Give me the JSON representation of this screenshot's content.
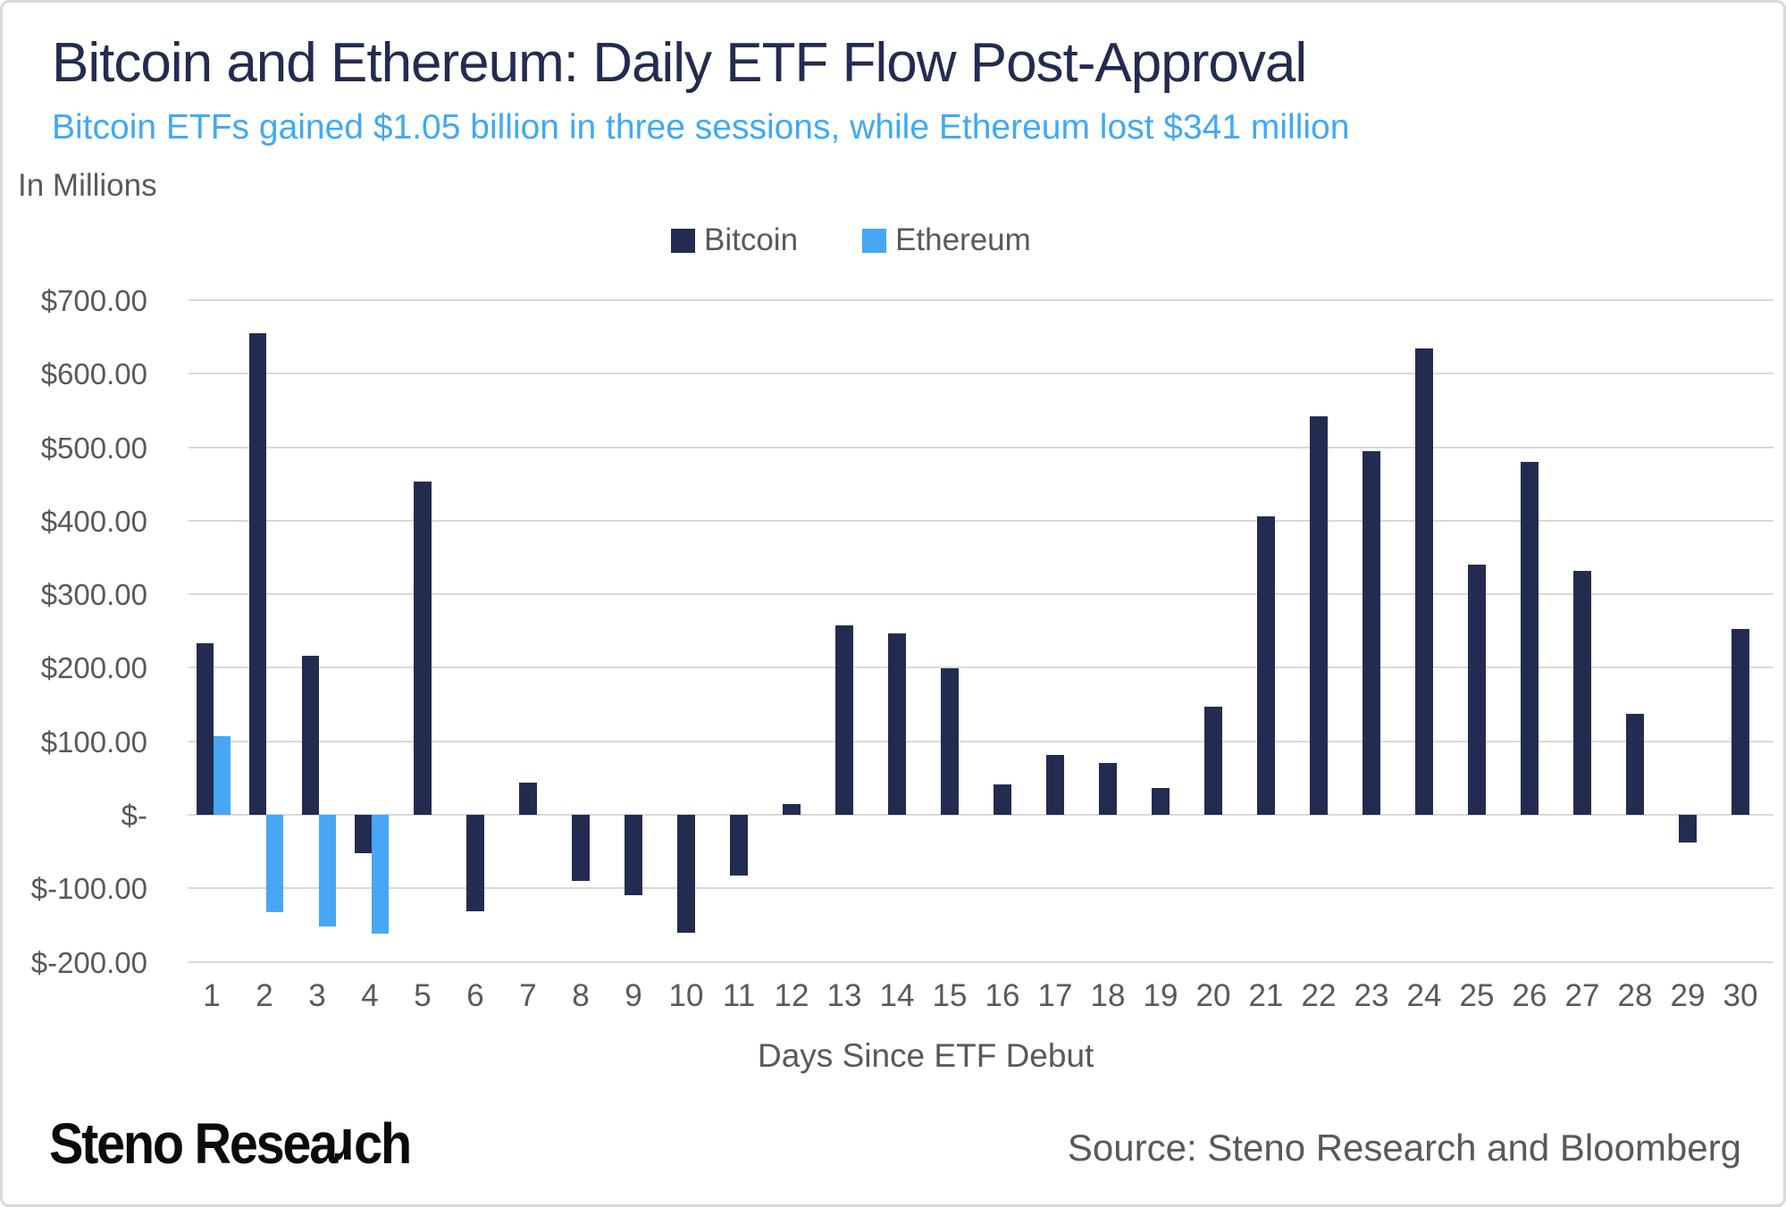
{
  "title": "Bitcoin and Ethereum: Daily ETF Flow Post-Approval",
  "subtitle": "Bitcoin ETFs gained $1.05 billion in three sessions, while Ethereum lost $341 million",
  "axis_note": "In Millions",
  "legend": {
    "items": [
      {
        "label": "Bitcoin",
        "color": "#232C50"
      },
      {
        "label": "Ethereum",
        "color": "#47A7F5"
      }
    ]
  },
  "x_axis_title": "Days Since ETF Debut",
  "footer": {
    "logo_prefix": "Steno Resea",
    "logo_flipped_char": "r",
    "logo_suffix": "ch",
    "source": "Source: Steno Research and Bloomberg"
  },
  "colors": {
    "bitcoin": "#232C50",
    "ethereum": "#47A7F5",
    "subtitle_blue": "#3FA9F5",
    "title_navy": "#232B4F",
    "gray_text": "#595959",
    "gridline": "#D9D9D9"
  },
  "chart_data": {
    "type": "bar",
    "title": "Bitcoin and Ethereum: Daily ETF Flow Post-Approval",
    "subtitle": "Bitcoin ETFs gained $1.05 billion in three sessions, while Ethereum lost $341 million",
    "xlabel": "Days Since ETF Debut",
    "ylabel": "In Millions",
    "ylim": [
      -200,
      700
    ],
    "grid": true,
    "legend_position": "top",
    "categories": [
      "1",
      "2",
      "3",
      "4",
      "5",
      "6",
      "7",
      "8",
      "9",
      "10",
      "11",
      "12",
      "13",
      "14",
      "15",
      "16",
      "17",
      "18",
      "19",
      "20",
      "21",
      "22",
      "23",
      "24",
      "25",
      "26",
      "27",
      "28",
      "29",
      "30"
    ],
    "yticks": [
      700,
      600,
      500,
      400,
      300,
      200,
      100,
      0,
      -100,
      -200
    ],
    "ytick_labels": [
      "$700.00",
      "$600.00",
      "$500.00",
      "$400.00",
      "$300.00",
      "$200.00",
      "$100.00",
      "$-",
      "$-100.00",
      "$-200.00"
    ],
    "series": [
      {
        "name": "Bitcoin",
        "color": "#232C50",
        "values": [
          233,
          655,
          216,
          -52,
          453,
          -131,
          44,
          -90,
          -109,
          -160,
          -83,
          15,
          257,
          247,
          199,
          41,
          82,
          70,
          37,
          147,
          406,
          542,
          494,
          634,
          340,
          480,
          332,
          137,
          -38,
          253
        ]
      },
      {
        "name": "Ethereum",
        "color": "#47A7F5",
        "values": [
          107,
          -133,
          -152,
          -162,
          null,
          null,
          null,
          null,
          null,
          null,
          null,
          null,
          null,
          null,
          null,
          null,
          null,
          null,
          null,
          null,
          null,
          null,
          null,
          null,
          null,
          null,
          null,
          null,
          null,
          null
        ]
      }
    ]
  }
}
